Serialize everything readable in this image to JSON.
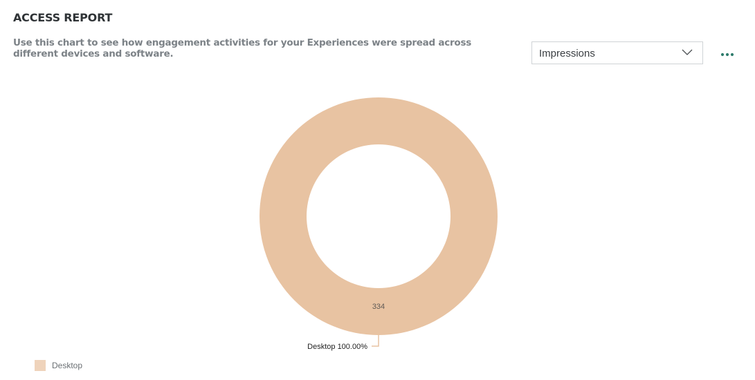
{
  "report": {
    "title": "ACCESS REPORT",
    "description": "Use this chart to see how engagement activities for your Experiences were spread across different devices and software."
  },
  "metric_select": {
    "selected": "Impressions",
    "icon": "chevron-down-icon"
  },
  "more_menu": {
    "icon": "more-horizontal-icon",
    "color": "#2f7d6d"
  },
  "chart_data": {
    "type": "pie",
    "variant": "donut",
    "slices": [
      {
        "label": "Desktop",
        "value": 334,
        "value_label": "334",
        "callout": "Desktop 100.00%",
        "color": "#e8c3a2"
      }
    ],
    "legend": {
      "position": "bottom-left",
      "items": [
        "Desktop"
      ],
      "swatch_color": "#efd3bb"
    }
  }
}
